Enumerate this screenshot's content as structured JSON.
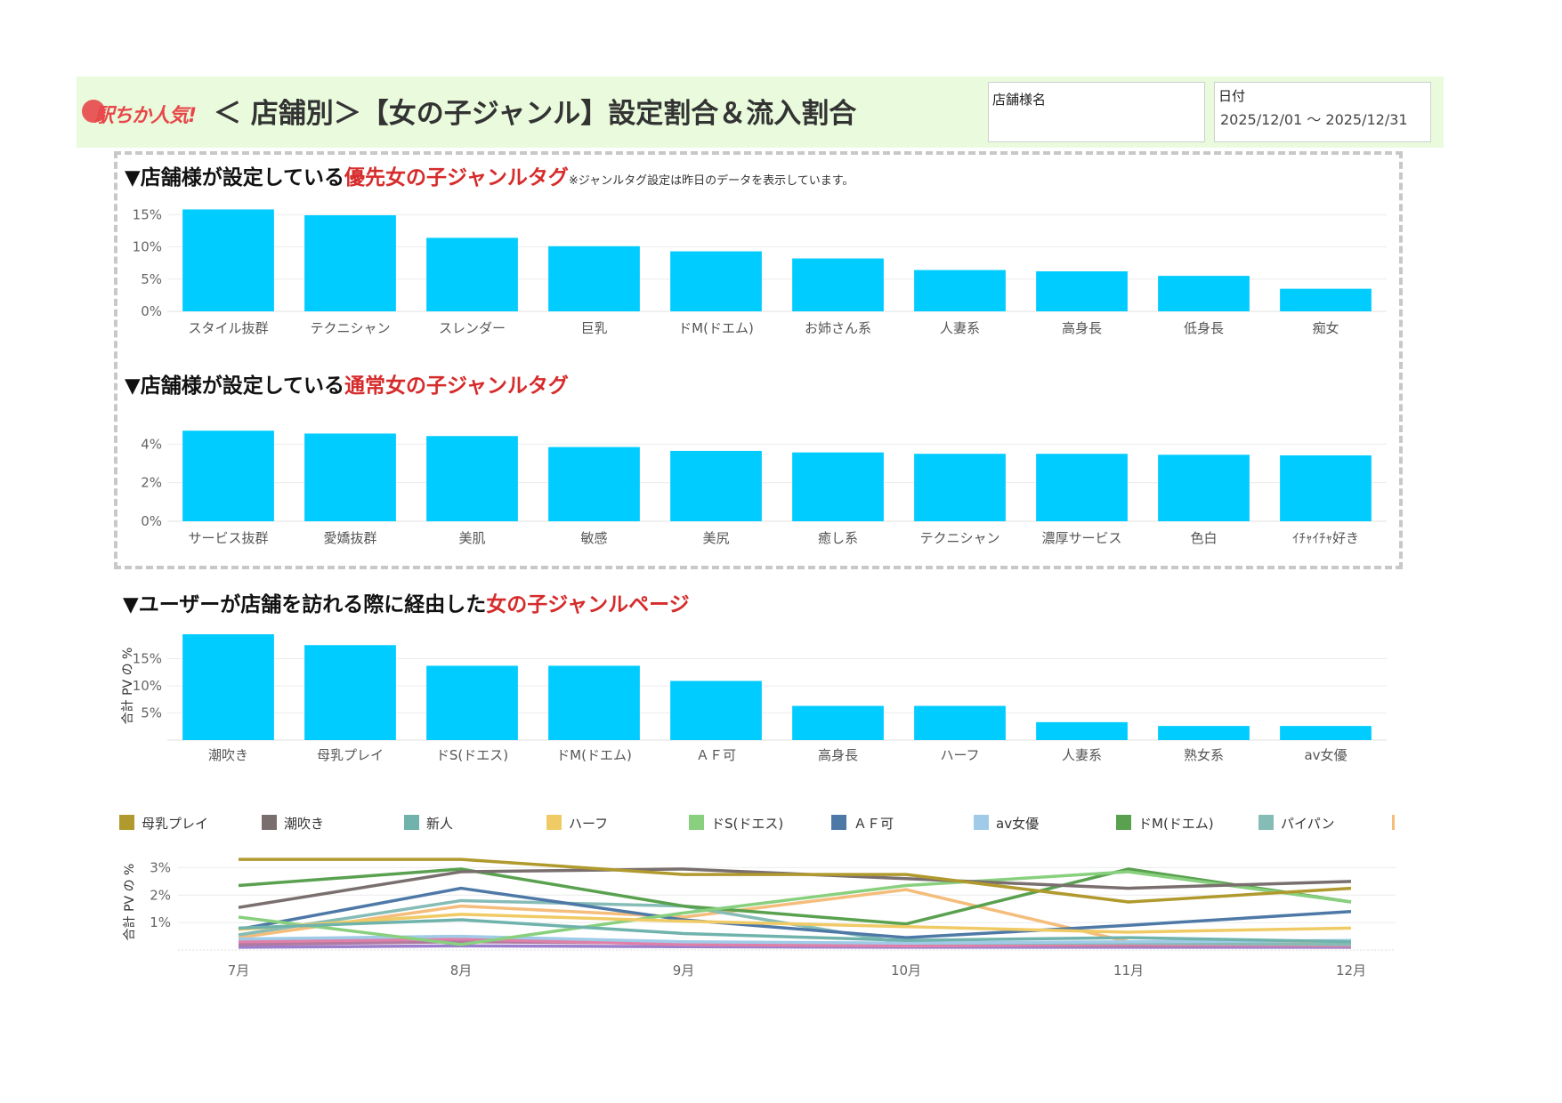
{
  "header": {
    "logo_text": "駅ちか人気!",
    "title": "＜ 店舗別＞【女の子ジャンル】設定割合＆流入割合",
    "store_label": "店舗様名",
    "store_value": "",
    "date_label": "日付",
    "date_value": "2025/12/01 ～ 2025/12/31"
  },
  "sections": {
    "s1_prefix": "▼店舗様が設定している",
    "s1_red": "優先女の子ジャンルタグ",
    "s1_note": "※ジャンルタグ設定は昨日のデータを表示しています。",
    "s2_prefix": "▼店舗様が設定している",
    "s2_red": "通常女の子ジャンルタグ",
    "s3_prefix": "▼ユーザーが店舗を訪れる際に経由した",
    "s3_red": "女の子ジャンルページ"
  },
  "colors": {
    "bar": "#00ccff",
    "header_bg": "#e9fbdc",
    "accent_red": "#d62b2b"
  },
  "chart_data": [
    {
      "type": "bar",
      "categories": [
        "スタイル抜群",
        "テクニシャン",
        "スレンダー",
        "巨乳",
        "ドM(ドエム)",
        "お姉さん系",
        "人妻系",
        "高身長",
        "低身長",
        "痴女"
      ],
      "values": [
        15.8,
        14.9,
        11.4,
        10.1,
        9.3,
        8.2,
        6.4,
        6.2,
        5.5,
        3.5
      ],
      "yticks": [
        0,
        5,
        10,
        15
      ],
      "ylim": [
        0,
        16
      ],
      "grid": true
    },
    {
      "type": "bar",
      "categories": [
        "サービス抜群",
        "愛嬌抜群",
        "美肌",
        "敏感",
        "美尻",
        "癒し系",
        "テクニシャン",
        "濃厚サービス",
        "色白",
        "ｲﾁｬｲﾁｬ好き"
      ],
      "values": [
        4.7,
        4.55,
        4.42,
        3.85,
        3.65,
        3.57,
        3.5,
        3.5,
        3.45,
        3.42
      ],
      "yticks": [
        0,
        2,
        4
      ],
      "ylim": [
        0,
        4.8
      ],
      "grid": true
    },
    {
      "type": "bar",
      "categories": [
        "潮吹き",
        "母乳プレイ",
        "ドS(ドエス)",
        "ドM(ドエム)",
        "ＡＦ可",
        "高身長",
        "ハーフ",
        "人妻系",
        "熟女系",
        "av女優"
      ],
      "values": [
        19.5,
        17.5,
        13.7,
        13.7,
        10.9,
        6.3,
        6.3,
        3.3,
        2.6,
        2.6
      ],
      "yticks": [
        5,
        10,
        15
      ],
      "ylim": [
        0,
        20
      ],
      "ylabel": "合計 PV の %",
      "grid": true
    },
    {
      "type": "line",
      "x": [
        "7月",
        "8月",
        "9月",
        "10月",
        "11月",
        "12月"
      ],
      "yticks": [
        1,
        2,
        3
      ],
      "ylim": [
        0,
        3.5
      ],
      "ylabel": "合計 PV の %",
      "legend_position": "top",
      "grid": true,
      "series": [
        {
          "name": "母乳プレイ",
          "color": "#b09a2e",
          "values": [
            3.3,
            3.3,
            2.75,
            2.75,
            1.75,
            2.25
          ]
        },
        {
          "name": "潮吹き",
          "color": "#7a6f6f",
          "values": [
            1.55,
            2.85,
            2.95,
            2.6,
            2.25,
            2.5
          ]
        },
        {
          "name": "新人",
          "color": "#6fb3ac",
          "values": [
            0.8,
            1.1,
            0.6,
            0.35,
            0.45,
            0.3
          ]
        },
        {
          "name": "ハーフ",
          "color": "#f0cb65",
          "values": [
            0.75,
            1.3,
            1.05,
            0.85,
            0.65,
            0.8
          ]
        },
        {
          "name": "ドS(ドエス)",
          "color": "#88d07e",
          "values": [
            1.2,
            0.2,
            1.35,
            2.35,
            2.85,
            1.75
          ]
        },
        {
          "name": "ＡＦ可",
          "color": "#4e79a7",
          "values": [
            0.75,
            2.25,
            1.1,
            0.45,
            0.9,
            1.4
          ]
        },
        {
          "name": "av女優",
          "color": "#a0cbe8",
          "values": [
            0.4,
            0.5,
            0.3,
            0.25,
            0.3,
            0.35
          ]
        },
        {
          "name": "ドM(ドエム)",
          "color": "#59a14f",
          "values": [
            2.35,
            2.95,
            1.6,
            0.95,
            2.95,
            1.75
          ]
        },
        {
          "name": "パイパン",
          "color": "#86bcb6",
          "values": [
            0.55,
            1.8,
            1.6,
            0.25,
            0.25,
            0.2
          ]
        },
        {
          "name": "",
          "color": "#f5bd7c",
          "values": [
            0.45,
            1.6,
            1.2,
            2.2,
            0.3,
            0.2
          ]
        },
        {
          "name": "",
          "color": "#e080a8",
          "values": [
            0.3,
            0.4,
            0.2,
            0.15,
            0.2,
            0.15
          ]
        },
        {
          "name": "",
          "color": "#b07aa1",
          "values": [
            0.2,
            0.3,
            0.25,
            0.2,
            0.15,
            0.2
          ]
        },
        {
          "name": "",
          "color": "#9c7fcc",
          "values": [
            0.1,
            0.15,
            0.12,
            0.1,
            0.1,
            0.1
          ]
        }
      ]
    }
  ]
}
